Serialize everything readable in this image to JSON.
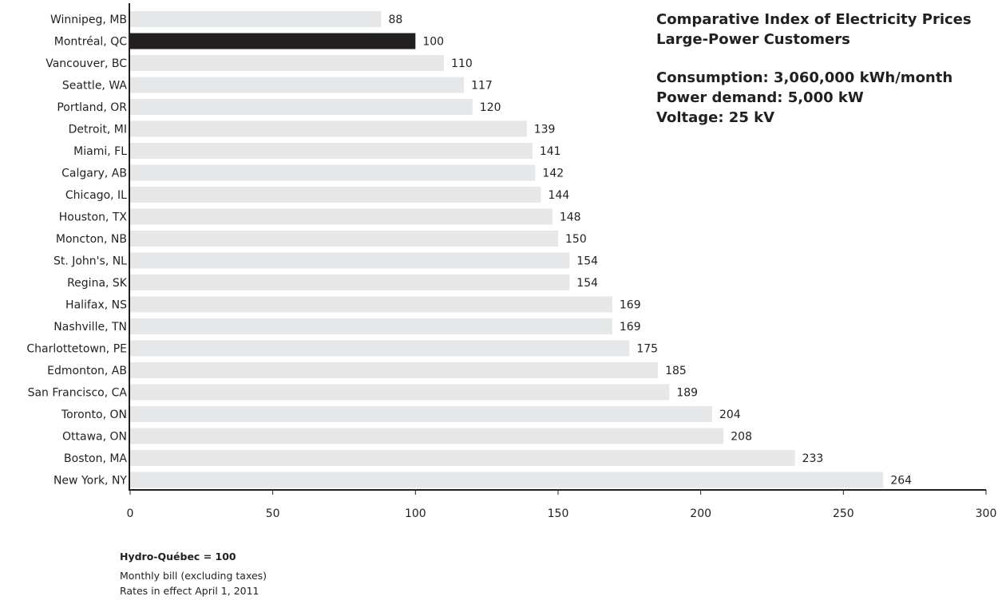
{
  "chart_data": {
    "type": "bar",
    "orientation": "horizontal",
    "title": "Comparative Index of Electricity Prices",
    "subtitle": "Large-Power Customers",
    "specs": [
      "Consumption: 3,060,000 kWh/month",
      "Power demand: 5,000 kW",
      "Voltage: 25 kV"
    ],
    "categories": [
      "Winnipeg, MB",
      "Montréal, QC",
      "Vancouver, BC",
      "Seattle, WA",
      "Portland, OR",
      "Detroit, MI",
      "Miami, FL",
      "Calgary, AB",
      "Chicago, IL",
      "Houston, TX",
      "Moncton, NB",
      "St. John's, NL",
      "Regina, SK",
      "Halifax, NS",
      "Nashville, TN",
      "Charlottetown, PE",
      "Edmonton, AB",
      "San Francisco, CA",
      "Toronto, ON",
      "Ottawa, ON",
      "Boston, MA",
      "New York, NY"
    ],
    "values": [
      88,
      100,
      110,
      117,
      120,
      139,
      141,
      142,
      144,
      148,
      150,
      154,
      154,
      169,
      169,
      175,
      185,
      189,
      204,
      208,
      233,
      264
    ],
    "highlight": "Montréal, QC",
    "xlim": [
      0,
      300
    ],
    "xticks": [
      0,
      50,
      100,
      150,
      200,
      250,
      300
    ],
    "grid": false,
    "colors": {
      "bar": "#e6e7e8",
      "highlight": "#231f20",
      "axis": "#231f20",
      "text": "#231f20"
    }
  },
  "notes": {
    "reference": "Hydro-Québec = 100",
    "line1": "Monthly bill (excluding taxes)",
    "line2": "Rates in effect April 1, 2011"
  }
}
